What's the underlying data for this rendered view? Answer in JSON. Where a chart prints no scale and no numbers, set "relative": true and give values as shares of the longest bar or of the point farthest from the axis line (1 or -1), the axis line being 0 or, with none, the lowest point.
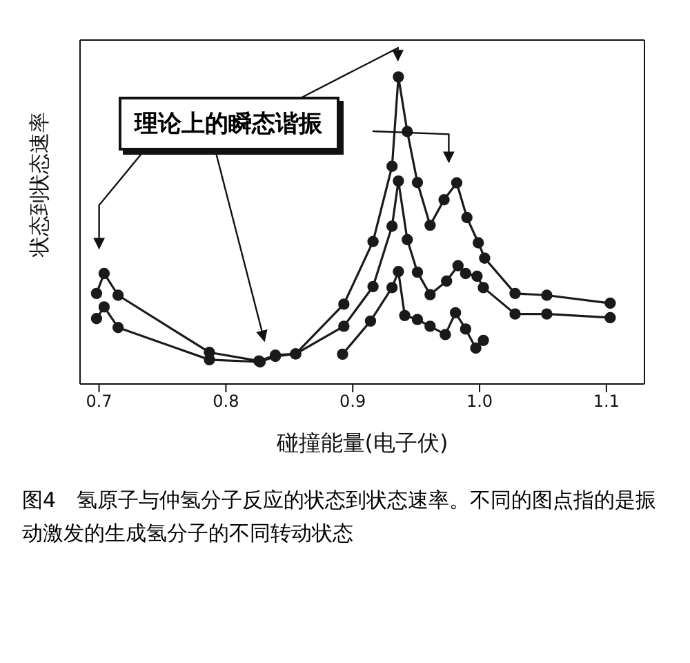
{
  "chart_data": {
    "type": "line",
    "relative": true,
    "xlabel": "碰撞能量(电子伏)",
    "ylabel": "状态到状态速率",
    "xlim": [
      0.685,
      1.13
    ],
    "xticks": [
      0.7,
      0.8,
      0.9,
      {
        "value": 1,
        "label": "1.0"
      },
      1.1
    ],
    "annotations": [
      "理论上的瞬态谐振",
      "图4　氢原子与仲氢分子反应的状态到状态速率。不同的图点指的是振动激发的生成氢分子的不同转动状态"
    ],
    "legend": false,
    "grid": false,
    "marker": "circle",
    "line_style": "solid",
    "series": [
      {
        "color": "#1a1a1a",
        "x": [
          0.698,
          0.704,
          0.715,
          0.787,
          0.826,
          0.839,
          0.855,
          0.893,
          0.916,
          0.931,
          0.936,
          0.943,
          0.951,
          0.961,
          0.972,
          0.982,
          0.99,
          0.999,
          1.004,
          1.028,
          1.053,
          1.103
        ],
        "values": [
          0.295,
          0.36,
          0.289,
          0.103,
          0.075,
          0.094,
          0.098,
          0.26,
          0.464,
          0.709,
          1,
          0.822,
          0.656,
          0.517,
          0.6,
          0.655,
          0.542,
          0.46,
          0.41,
          0.295,
          0.289,
          0.263
        ]
      },
      {
        "color": "#1a1a1a",
        "x": [
          0.698,
          0.704,
          0.715,
          0.787,
          0.827,
          0.839,
          0.855,
          0.893,
          0.916,
          0.931,
          0.936,
          0.943,
          0.951,
          0.961,
          0.974,
          0.983,
          0.989,
          0.998,
          1.003,
          1.028,
          1.053,
          1.103
        ],
        "values": [
          0.213,
          0.251,
          0.184,
          0.079,
          0.072,
          0.09,
          0.098,
          0.188,
          0.317,
          0.514,
          0.661,
          0.47,
          0.364,
          0.291,
          0.335,
          0.385,
          0.36,
          0.351,
          0.314,
          0.228,
          0.228,
          0.216
        ]
      },
      {
        "color": "#1a1a1a",
        "x": [
          0.892,
          0.914,
          0.931,
          0.936,
          0.941,
          0.951,
          0.961,
          0.973,
          0.981,
          0.989,
          0.997,
          1.003
        ],
        "values": [
          0.097,
          0.205,
          0.314,
          0.366,
          0.223,
          0.21,
          0.188,
          0.161,
          0.232,
          0.179,
          0.117,
          0.142
        ]
      }
    ]
  }
}
